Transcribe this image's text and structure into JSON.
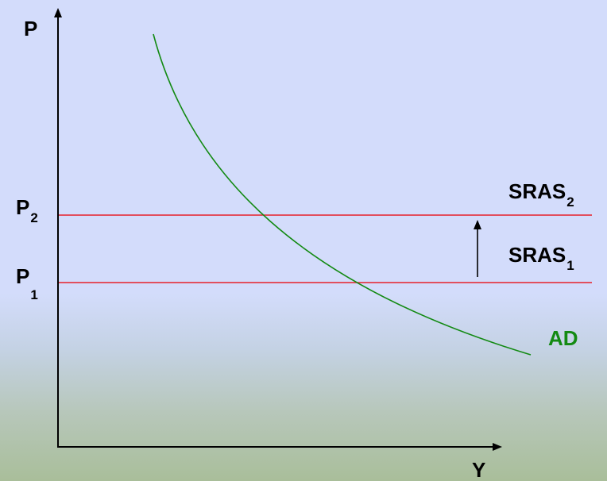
{
  "axes": {
    "y_label": "P",
    "x_label": "Y"
  },
  "price_levels": {
    "p1": {
      "main": "P",
      "sub": "1"
    },
    "p2": {
      "main": "P",
      "sub": "2"
    }
  },
  "curves": {
    "sras1": {
      "main": "SRAS",
      "sub": "1"
    },
    "sras2": {
      "main": "SRAS",
      "sub": "2"
    },
    "ad": {
      "label": "AD"
    }
  },
  "colors": {
    "sras": "#e8202a",
    "ad": "#138a13",
    "axis": "#000000",
    "background_top": "#d3dcfb",
    "background_bottom": "#a9be9a"
  }
}
